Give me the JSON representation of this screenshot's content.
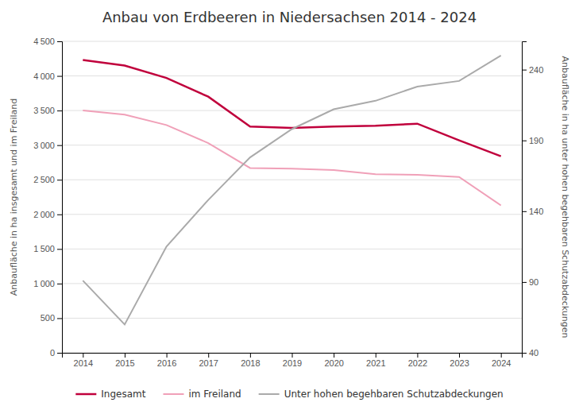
{
  "chart_data": {
    "type": "line",
    "title": "Anbau von Erdbeeren in Niedersachsen 2014 - 2024",
    "x": [
      2014,
      2015,
      2016,
      2017,
      2018,
      2019,
      2020,
      2021,
      2022,
      2023,
      2024
    ],
    "xlim": [
      2013.5,
      2024.5
    ],
    "xticks": [
      2014,
      2015,
      2016,
      2017,
      2018,
      2019,
      2020,
      2021,
      2022,
      2023,
      2024
    ],
    "ylabel": "Anbaufläche in ha insgesamt und im Freiland",
    "y2label": "Anbaufläche in ha unter hohen begehbaren Schutzabdeckungen",
    "ylim": [
      0,
      4500
    ],
    "yticks": [
      0,
      500,
      {
        "value": 1000,
        "label": "1 000"
      },
      {
        "value": 1500,
        "label": "1 500"
      },
      {
        "value": 2000,
        "label": "2 000"
      },
      {
        "value": 2500,
        "label": "2 500"
      },
      {
        "value": 3000,
        "label": "3 000"
      },
      {
        "value": 3500,
        "label": "3 500"
      },
      {
        "value": 4000,
        "label": "4 000"
      },
      {
        "value": 4500,
        "label": "4 500"
      }
    ],
    "y2lim": [
      40,
      260
    ],
    "y2ticks": [
      40,
      90,
      140,
      190,
      240
    ],
    "grid": true,
    "legend": "bottom",
    "series": [
      {
        "name": "Ingesamt",
        "color": "#c0003c",
        "values": [
          4230,
          4150,
          3970,
          3700,
          3270,
          3250,
          3270,
          3280,
          3310,
          3070,
          2840
        ]
      },
      {
        "name": "im Freiland",
        "color": "#f0a0b8",
        "values": [
          3500,
          3440,
          3290,
          3030,
          2670,
          2660,
          2640,
          2580,
          2570,
          2540,
          2130
        ]
      },
      {
        "name": "Unter hohen begehbaren Schutzabdeckungen",
        "color": "#aaaaaa",
        "axis": "y2",
        "values": [
          91,
          60,
          115,
          148,
          178,
          198,
          212,
          218,
          228,
          232,
          250
        ]
      }
    ]
  }
}
